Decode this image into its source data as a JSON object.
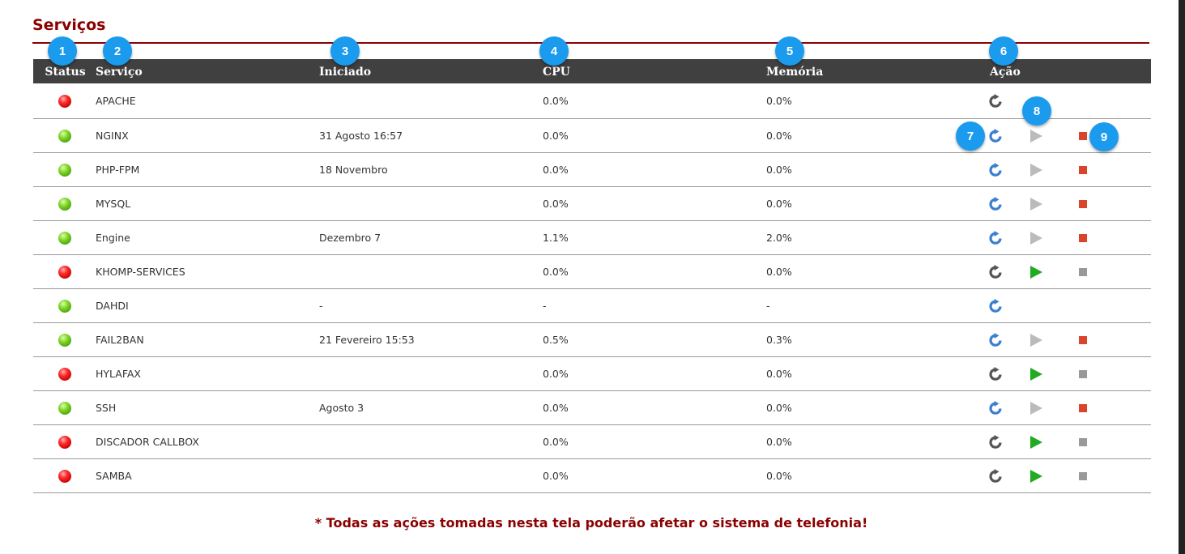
{
  "page": {
    "title": "Serviços"
  },
  "table": {
    "headers": {
      "status": "Status",
      "service": "Serviço",
      "started": "Iniciado",
      "cpu": "CPU",
      "memory": "Memória",
      "action": "Ação"
    },
    "rows": [
      {
        "status": "stopped",
        "name": "APACHE",
        "started": "",
        "cpu": "0.0%",
        "memory": "0.0%",
        "actions": [
          "restart-inactive"
        ]
      },
      {
        "status": "running",
        "name": "NGINX",
        "started": "31 Agosto 16:57",
        "cpu": "0.0%",
        "memory": "0.0%",
        "actions": [
          "restart-active",
          "play-disabled",
          "stop-active"
        ]
      },
      {
        "status": "running",
        "name": "PHP-FPM",
        "started": "18 Novembro",
        "cpu": "0.0%",
        "memory": "0.0%",
        "actions": [
          "restart-active",
          "play-disabled",
          "stop-active"
        ]
      },
      {
        "status": "running",
        "name": "MYSQL",
        "started": "",
        "cpu": "0.0%",
        "memory": "0.0%",
        "actions": [
          "restart-active",
          "play-disabled",
          "stop-active"
        ]
      },
      {
        "status": "running",
        "name": "Engine",
        "started": "Dezembro 7",
        "cpu": "1.1%",
        "memory": "2.0%",
        "actions": [
          "restart-active",
          "play-disabled",
          "stop-active"
        ]
      },
      {
        "status": "stopped",
        "name": "KHOMP-SERVICES",
        "started": "",
        "cpu": "0.0%",
        "memory": "0.0%",
        "actions": [
          "restart-inactive",
          "play-active",
          "stop-disabled"
        ]
      },
      {
        "status": "running",
        "name": "DAHDI",
        "started": "-",
        "cpu": "-",
        "memory": "-",
        "actions": [
          "restart-active"
        ]
      },
      {
        "status": "running",
        "name": "FAIL2BAN",
        "started": "21 Fevereiro 15:53",
        "cpu": "0.5%",
        "memory": "0.3%",
        "actions": [
          "restart-active",
          "play-disabled",
          "stop-active"
        ]
      },
      {
        "status": "stopped",
        "name": "HYLAFAX",
        "started": "",
        "cpu": "0.0%",
        "memory": "0.0%",
        "actions": [
          "restart-inactive",
          "play-active",
          "stop-disabled"
        ]
      },
      {
        "status": "running",
        "name": "SSH",
        "started": "Agosto 3",
        "cpu": "0.0%",
        "memory": "0.0%",
        "actions": [
          "restart-active",
          "play-disabled",
          "stop-active"
        ]
      },
      {
        "status": "stopped",
        "name": "DISCADOR CALLBOX",
        "started": "",
        "cpu": "0.0%",
        "memory": "0.0%",
        "actions": [
          "restart-inactive",
          "play-active",
          "stop-disabled"
        ]
      },
      {
        "status": "stopped",
        "name": "SAMBA",
        "started": "",
        "cpu": "0.0%",
        "memory": "0.0%",
        "actions": [
          "restart-inactive",
          "play-active",
          "stop-disabled"
        ]
      }
    ]
  },
  "badges": [
    "1",
    "2",
    "3",
    "4",
    "5",
    "6",
    "7",
    "8",
    "9"
  ],
  "footer": {
    "warning": "* Todas as ações tomadas nesta tela poderão afetar o sistema de telefonia!"
  },
  "colors": {
    "accent": "#8b0000",
    "header_bg": "#404040",
    "badge": "#1a9bee",
    "restart_active": "#3a7fd0",
    "restart_inactive": "#555555",
    "play_active": "#22aa22",
    "play_disabled": "#bbbbbb",
    "stop_active": "#d9452b",
    "stop_disabled": "#999999"
  }
}
